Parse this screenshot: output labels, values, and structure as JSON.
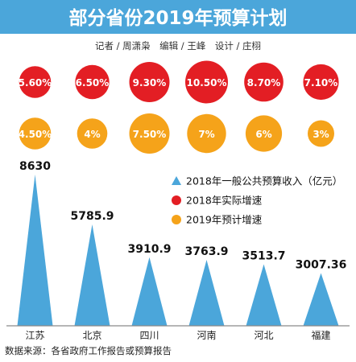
{
  "header": {
    "title": "部分省份2019年预算计划",
    "credits": "记者 / 周潇枭　编辑 / 王峰　设计 / 庄栩"
  },
  "footer": {
    "source": "数据来源：各省政府工作报告或预算报告"
  },
  "colors": {
    "header_bg": "#4BA6DA",
    "triangle": "#4BA6DA",
    "actual_circle": "#E31E24",
    "forecast_circle": "#F5A31A",
    "axis": "#8A8A8A"
  },
  "chart_data": {
    "type": "bar",
    "categories": [
      "江苏",
      "北京",
      "四川",
      "河南",
      "河北",
      "福建"
    ],
    "series": [
      {
        "name": "2018年一般公共预算收入（亿元）",
        "labels": [
          "8630",
          "5785.9",
          "3910.9",
          "3763.9",
          "3513.7",
          "3007.36"
        ],
        "values": [
          8630,
          5785.9,
          3910.9,
          3763.9,
          3513.7,
          3007.36
        ],
        "marker": "triangle"
      },
      {
        "name": "2018年实际增速",
        "labels": [
          "5.60%",
          "6.50%",
          "9.30%",
          "10.50%",
          "8.70%",
          "7.10%"
        ],
        "values": [
          5.6,
          6.5,
          9.3,
          10.5,
          8.7,
          7.1
        ],
        "marker": "circle"
      },
      {
        "name": "2019年预计增速",
        "labels": [
          "4.50%",
          "4%",
          "7.50%",
          "7%",
          "6%",
          "3%"
        ],
        "values": [
          4.5,
          4,
          7.5,
          7,
          6,
          3
        ],
        "marker": "circle"
      }
    ],
    "legend_position": "right",
    "grid": false
  }
}
